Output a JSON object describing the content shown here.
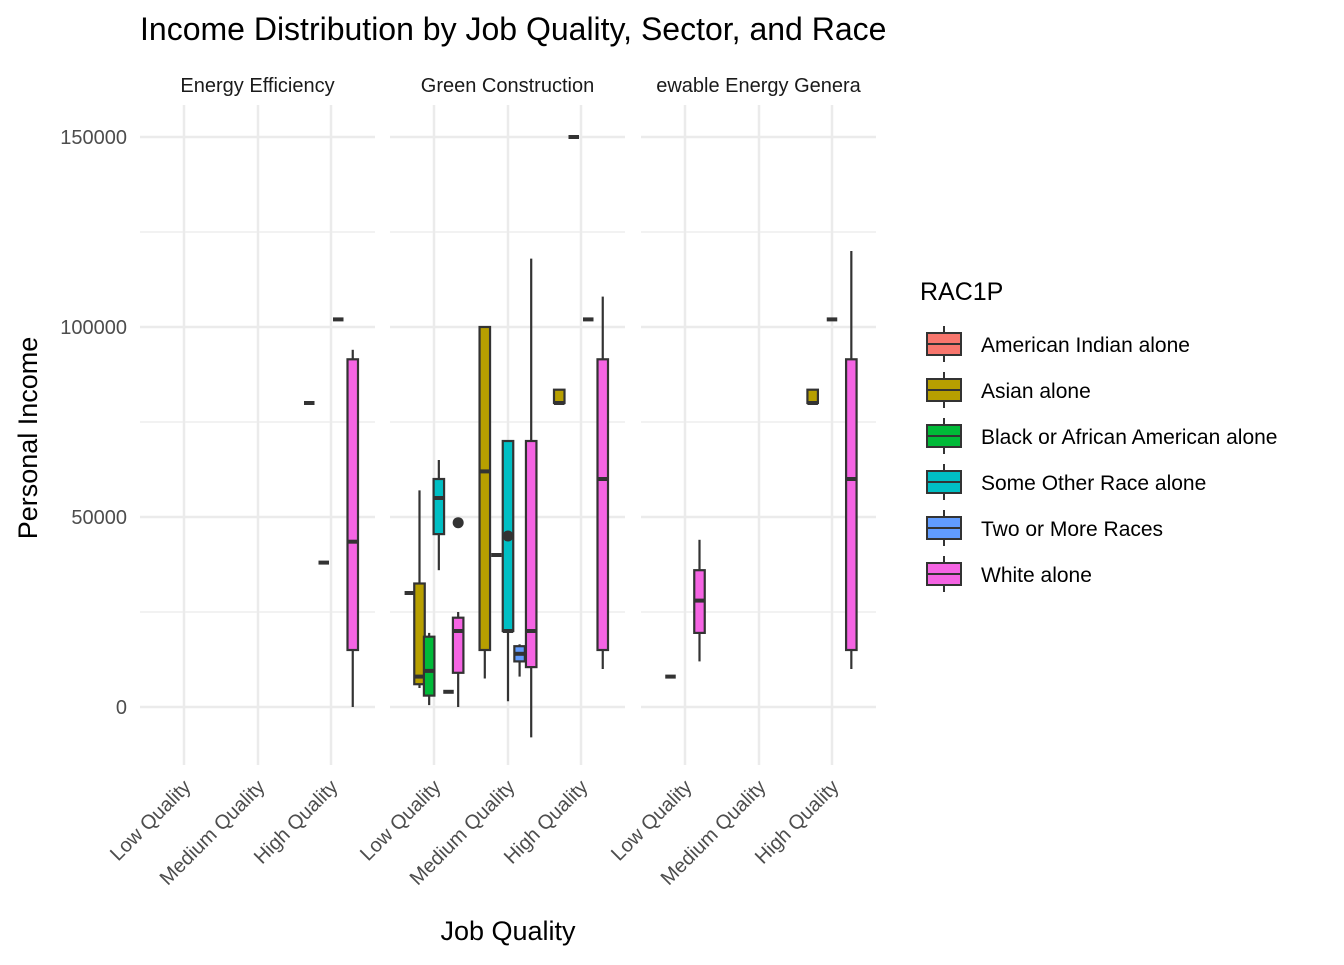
{
  "colors": {
    "American Indian alone": "#F8766D",
    "Asian alone": "#B79F00",
    "Black or African American alone": "#00BA38",
    "Some Other Race alone": "#00BFC4",
    "Two or More Races": "#619CFF",
    "White alone": "#F564E3",
    "grid": "#EBEBEB",
    "outline": "#333333"
  },
  "chart_data": {
    "type": "boxplot",
    "title": "Income Distribution by Job Quality, Sector, and Race",
    "xlabel": "Job Quality",
    "ylabel": "Personal Income",
    "ylim": [
      -15000,
      165000
    ],
    "yticks": [
      0,
      50000,
      100000,
      150000
    ],
    "ytick_labels": [
      "0",
      "50000",
      "100000",
      "150000"
    ],
    "categories": [
      "Low Quality",
      "Medium Quality",
      "High Quality"
    ],
    "facets": [
      "Energy Efficiency",
      "Green Construction",
      "Renewable Energy Generation"
    ],
    "facet_strip_labels": [
      "Energy Efficiency",
      "Green Construction",
      "ewable Energy Genera"
    ],
    "legend": {
      "title": "RAC1P",
      "position": "right",
      "entries": [
        "American Indian alone",
        "Asian alone",
        "Black or African American alone",
        "Some Other Race alone",
        "Two or More Races",
        "White alone"
      ]
    },
    "grid": true,
    "boxes": [
      {
        "facet": "Energy Efficiency",
        "quality": "High Quality",
        "race": "Asian alone",
        "slot": 0,
        "min": 80000,
        "q1": 80000,
        "median": 80000,
        "q3": 80000,
        "max": 80000
      },
      {
        "facet": "Energy Efficiency",
        "quality": "High Quality",
        "race": "Some Other Race alone",
        "slot": 1,
        "min": 38000,
        "q1": 38000,
        "median": 38000,
        "q3": 38000,
        "max": 38000
      },
      {
        "facet": "Energy Efficiency",
        "quality": "High Quality",
        "race": "Two or More Races",
        "slot": 2,
        "min": 102000,
        "q1": 102000,
        "median": 102000,
        "q3": 102000,
        "max": 102000
      },
      {
        "facet": "Energy Efficiency",
        "quality": "High Quality",
        "race": "White alone",
        "slot": 3,
        "min": 0,
        "q1": 15000,
        "median": 43500,
        "q3": 91500,
        "max": 94000
      },
      {
        "facet": "Green Construction",
        "quality": "Low Quality",
        "race": "American Indian alone",
        "slot": 0,
        "min": 30000,
        "q1": 30000,
        "median": 30000,
        "q3": 30000,
        "max": 30000
      },
      {
        "facet": "Green Construction",
        "quality": "Low Quality",
        "race": "Asian alone",
        "slot": 1,
        "min": 5000,
        "q1": 6000,
        "median": 8000,
        "q3": 32500,
        "max": 57000
      },
      {
        "facet": "Green Construction",
        "quality": "Low Quality",
        "race": "Black or African American alone",
        "slot": 2,
        "min": 500,
        "q1": 3000,
        "median": 9500,
        "q3": 18500,
        "max": 19500
      },
      {
        "facet": "Green Construction",
        "quality": "Low Quality",
        "race": "Some Other Race alone",
        "slot": 3,
        "min": 36000,
        "q1": 45500,
        "median": 55000,
        "q3": 60000,
        "max": 65000
      },
      {
        "facet": "Green Construction",
        "quality": "Low Quality",
        "race": "Two or More Races",
        "slot": 4,
        "min": 4000,
        "q1": 4000,
        "median": 4000,
        "q3": 4000,
        "max": 4000
      },
      {
        "facet": "Green Construction",
        "quality": "Low Quality",
        "race": "White alone",
        "slot": 5,
        "min": 0,
        "q1": 9000,
        "median": 20000,
        "q3": 23500,
        "max": 25000,
        "outliers": [
          48500
        ]
      },
      {
        "facet": "Green Construction",
        "quality": "Medium Quality",
        "race": "Asian alone",
        "slot": 0,
        "min": 7500,
        "q1": 15000,
        "median": 62000,
        "q3": 100000,
        "max": 100000
      },
      {
        "facet": "Green Construction",
        "quality": "Medium Quality",
        "race": "Black or African American alone",
        "slot": 1,
        "min": 40000,
        "q1": 40000,
        "median": 40000,
        "q3": 40000,
        "max": 40000
      },
      {
        "facet": "Green Construction",
        "quality": "Medium Quality",
        "race": "Some Other Race alone",
        "slot": 2,
        "min": 1500,
        "q1": 20000,
        "median": 20000,
        "q3": 70000,
        "max": 70000,
        "outliers": [
          45000
        ]
      },
      {
        "facet": "Green Construction",
        "quality": "Medium Quality",
        "race": "Two or More Races",
        "slot": 3,
        "min": 8000,
        "q1": 12000,
        "median": 14000,
        "q3": 16000,
        "max": 16500
      },
      {
        "facet": "Green Construction",
        "quality": "Medium Quality",
        "race": "White alone",
        "slot": 4,
        "min": -8000,
        "q1": 10500,
        "median": 20000,
        "q3": 70000,
        "max": 118000
      },
      {
        "facet": "Green Construction",
        "quality": "High Quality",
        "race": "Asian alone",
        "slot": 0,
        "min": 80000,
        "q1": 80000,
        "median": 80000,
        "q3": 83500,
        "max": 83500
      },
      {
        "facet": "Green Construction",
        "quality": "High Quality",
        "race": "Some Other Race alone",
        "slot": 1,
        "min": 150000,
        "q1": 150000,
        "median": 150000,
        "q3": 150000,
        "max": 150000
      },
      {
        "facet": "Green Construction",
        "quality": "High Quality",
        "race": "Two or More Races",
        "slot": 2,
        "min": 102000,
        "q1": 102000,
        "median": 102000,
        "q3": 102000,
        "max": 102000
      },
      {
        "facet": "Green Construction",
        "quality": "High Quality",
        "race": "White alone",
        "slot": 3,
        "min": 10000,
        "q1": 15000,
        "median": 60000,
        "q3": 91500,
        "max": 108000
      },
      {
        "facet": "Renewable Energy Generation",
        "quality": "Low Quality",
        "race": "Asian alone",
        "slot": 0,
        "min": 8000,
        "q1": 8000,
        "median": 8000,
        "q3": 8000,
        "max": 8000
      },
      {
        "facet": "Renewable Energy Generation",
        "quality": "Low Quality",
        "race": "White alone",
        "slot": 1,
        "min": 12000,
        "q1": 19500,
        "median": 28000,
        "q3": 36000,
        "max": 44000
      },
      {
        "facet": "Renewable Energy Generation",
        "quality": "High Quality",
        "race": "Asian alone",
        "slot": 0,
        "min": 80000,
        "q1": 80000,
        "median": 80000,
        "q3": 83500,
        "max": 83500
      },
      {
        "facet": "Renewable Energy Generation",
        "quality": "High Quality",
        "race": "Two or More Races",
        "slot": 1,
        "min": 102000,
        "q1": 102000,
        "median": 102000,
        "q3": 102000,
        "max": 102000
      },
      {
        "facet": "Renewable Energy Generation",
        "quality": "High Quality",
        "race": "White alone",
        "slot": 2,
        "min": 10000,
        "q1": 15000,
        "median": 60000,
        "q3": 91500,
        "max": 120000
      }
    ]
  }
}
